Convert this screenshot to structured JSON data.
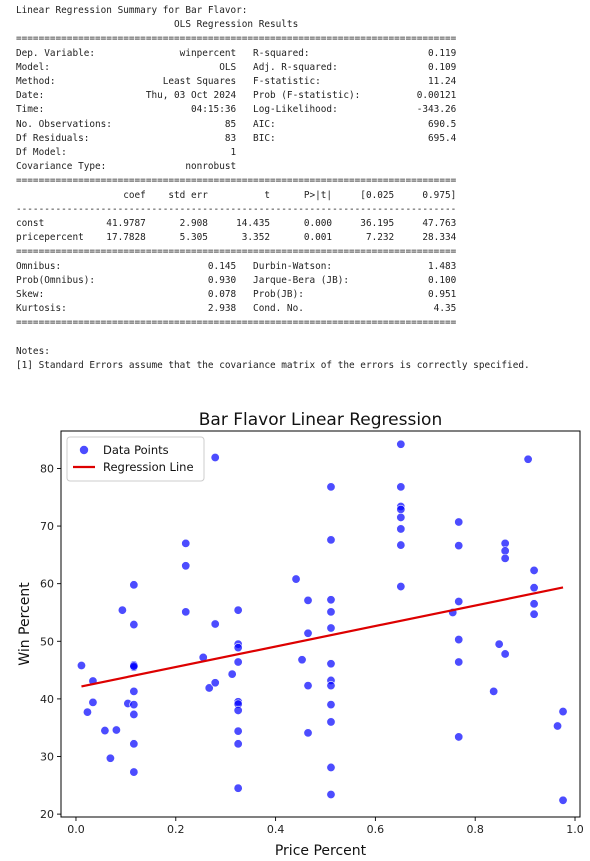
{
  "summary": {
    "heading": "Linear Regression Summary for Bar Flavor:",
    "title": "OLS Regression Results",
    "sep_eq": "==============================================================================",
    "sep_dash": "------------------------------------------------------------------------------",
    "model_info": [
      [
        "Dep. Variable:",
        "winpercent",
        "R-squared:",
        "0.119"
      ],
      [
        "Model:",
        "OLS",
        "Adj. R-squared:",
        "0.109"
      ],
      [
        "Method:",
        "Least Squares",
        "F-statistic:",
        "11.24"
      ],
      [
        "Date:",
        "Thu, 03 Oct 2024",
        "Prob (F-statistic):",
        "0.00121"
      ],
      [
        "Time:",
        "04:15:36",
        "Log-Likelihood:",
        "-343.26"
      ],
      [
        "No. Observations:",
        "85",
        "AIC:",
        "690.5"
      ],
      [
        "Df Residuals:",
        "83",
        "BIC:",
        "695.4"
      ],
      [
        "Df Model:",
        "1",
        "",
        ""
      ],
      [
        "Covariance Type:",
        "nonrobust",
        "",
        ""
      ]
    ],
    "coef_header": [
      "coef",
      "std err",
      "t",
      "P>|t|",
      "[0.025",
      "0.975]"
    ],
    "coef_rows": [
      [
        "const",
        "41.9787",
        "2.908",
        "14.435",
        "0.000",
        "36.195",
        "47.763"
      ],
      [
        "pricepercent",
        "17.7828",
        "5.305",
        "3.352",
        "0.001",
        "7.232",
        "28.334"
      ]
    ],
    "diagnostics": [
      [
        "Omnibus:",
        "0.145",
        "Durbin-Watson:",
        "1.483"
      ],
      [
        "Prob(Omnibus):",
        "0.930",
        "Jarque-Bera (JB):",
        "0.100"
      ],
      [
        "Skew:",
        "0.078",
        "Prob(JB):",
        "0.951"
      ],
      [
        "Kurtosis:",
        "2.938",
        "Cond. No.",
        "4.35"
      ]
    ],
    "notes_title": "Notes:",
    "notes": [
      "[1] Standard Errors assume that the covariance matrix of the errors is correctly specified."
    ]
  },
  "chart_data": {
    "type": "scatter",
    "title": "Bar Flavor Linear Regression",
    "xlabel": "Price Percent",
    "ylabel": "Win Percent",
    "xlim": [
      -0.03,
      1.01
    ],
    "ylim": [
      19.5,
      86.5
    ],
    "xticks": [
      0.0,
      0.2,
      0.4,
      0.6,
      0.8,
      1.0
    ],
    "yticks": [
      20,
      30,
      40,
      50,
      60,
      70,
      80
    ],
    "grid": false,
    "legend_position": "top-left",
    "series": [
      {
        "name": "Data Points",
        "type": "scatter",
        "color": "#0000ff",
        "points": [
          [
            0.011,
            45.8
          ],
          [
            0.023,
            37.7
          ],
          [
            0.034,
            43.1
          ],
          [
            0.034,
            39.4
          ],
          [
            0.058,
            34.5
          ],
          [
            0.069,
            29.7
          ],
          [
            0.081,
            34.6
          ],
          [
            0.093,
            55.4
          ],
          [
            0.104,
            39.2
          ],
          [
            0.116,
            59.8
          ],
          [
            0.116,
            52.9
          ],
          [
            0.116,
            45.9
          ],
          [
            0.116,
            45.5
          ],
          [
            0.116,
            41.3
          ],
          [
            0.116,
            39.0
          ],
          [
            0.116,
            37.3
          ],
          [
            0.116,
            32.2
          ],
          [
            0.116,
            27.3
          ],
          [
            0.22,
            67.0
          ],
          [
            0.22,
            63.1
          ],
          [
            0.22,
            55.1
          ],
          [
            0.255,
            47.2
          ],
          [
            0.267,
            41.9
          ],
          [
            0.279,
            81.9
          ],
          [
            0.279,
            53.0
          ],
          [
            0.279,
            42.8
          ],
          [
            0.313,
            44.3
          ],
          [
            0.325,
            55.4
          ],
          [
            0.325,
            49.5
          ],
          [
            0.325,
            48.9
          ],
          [
            0.325,
            46.4
          ],
          [
            0.325,
            39.5
          ],
          [
            0.325,
            39.1
          ],
          [
            0.325,
            38.0
          ],
          [
            0.325,
            34.4
          ],
          [
            0.325,
            32.2
          ],
          [
            0.325,
            24.5
          ],
          [
            0.441,
            60.8
          ],
          [
            0.453,
            46.8
          ],
          [
            0.465,
            57.1
          ],
          [
            0.465,
            51.4
          ],
          [
            0.465,
            42.3
          ],
          [
            0.465,
            34.1
          ],
          [
            0.511,
            76.8
          ],
          [
            0.511,
            67.6
          ],
          [
            0.511,
            57.2
          ],
          [
            0.511,
            55.1
          ],
          [
            0.511,
            52.3
          ],
          [
            0.511,
            46.1
          ],
          [
            0.511,
            43.2
          ],
          [
            0.511,
            42.3
          ],
          [
            0.511,
            39.0
          ],
          [
            0.511,
            36.0
          ],
          [
            0.511,
            28.1
          ],
          [
            0.511,
            23.4
          ],
          [
            0.651,
            84.2
          ],
          [
            0.651,
            76.8
          ],
          [
            0.651,
            73.4
          ],
          [
            0.651,
            72.9
          ],
          [
            0.651,
            71.5
          ],
          [
            0.651,
            69.5
          ],
          [
            0.651,
            66.7
          ],
          [
            0.651,
            59.5
          ],
          [
            0.755,
            55.0
          ],
          [
            0.767,
            70.7
          ],
          [
            0.767,
            66.6
          ],
          [
            0.767,
            56.9
          ],
          [
            0.767,
            50.3
          ],
          [
            0.767,
            46.4
          ],
          [
            0.767,
            33.4
          ],
          [
            0.837,
            41.3
          ],
          [
            0.848,
            49.5
          ],
          [
            0.86,
            67.0
          ],
          [
            0.86,
            65.7
          ],
          [
            0.86,
            64.4
          ],
          [
            0.86,
            47.8
          ],
          [
            0.906,
            81.6
          ],
          [
            0.918,
            62.3
          ],
          [
            0.918,
            59.3
          ],
          [
            0.918,
            56.5
          ],
          [
            0.918,
            54.7
          ],
          [
            0.965,
            35.3
          ],
          [
            0.976,
            37.8
          ],
          [
            0.976,
            22.4
          ],
          [
            0.116,
            45.7
          ]
        ]
      },
      {
        "name": "Regression Line",
        "type": "line",
        "color": "#dd0000",
        "points": [
          [
            0.011,
            42.17
          ],
          [
            0.976,
            59.34
          ]
        ]
      }
    ]
  }
}
